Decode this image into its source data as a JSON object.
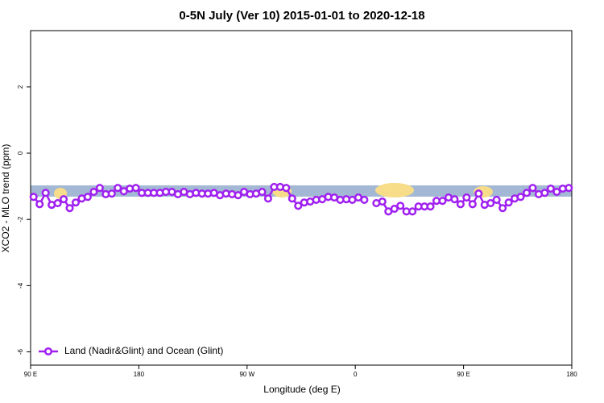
{
  "chart_data": {
    "type": "line",
    "title": "0-5N July (Ver 10)   2015-01-01 to 2020-12-18",
    "x_label": "Longitude (deg E)",
    "y_label": "XCO2 - MLO trend (ppm)",
    "x": [
      92.5,
      97.5,
      102.5,
      107.5,
      112.5,
      117.5,
      122.5,
      127.5,
      132.5,
      137.5,
      142.5,
      147.5,
      152.5,
      157.5,
      162.5,
      167.5,
      172.5,
      177.5,
      182.5,
      187.5,
      192.5,
      197.5,
      202.5,
      207.5,
      212.5,
      217.5,
      222.5,
      227.5,
      232.5,
      237.5,
      242.5,
      247.5,
      252.5,
      257.5,
      262.5,
      267.5,
      272.5,
      277.5,
      282.5,
      287.5,
      292.5,
      297.5,
      302.5,
      307.5,
      312.5,
      317.5,
      322.5,
      327.5,
      332.5,
      337.5,
      342.5,
      347.5,
      352.5,
      357.5,
      362.5,
      367.5,
      372.5,
      377.5,
      382.5,
      387.5,
      392.5,
      397.5,
      402.5,
      407.5,
      412.5,
      417.5,
      422.5,
      427.5,
      432.5,
      437.5,
      442.5,
      447.5,
      452.5,
      457.5,
      462.5,
      467.5,
      472.5,
      477.5,
      482.5,
      487.5,
      492.5,
      497.5,
      502.5,
      507.5,
      512.5,
      517.5,
      522.5,
      527.5,
      532.5,
      537.5
    ],
    "series": [
      {
        "name": "Land (Nadir&Glint) and Ocean (Glint)",
        "color": "#a020f0",
        "values": [
          -1.32,
          -1.54,
          -1.2,
          -1.56,
          -1.51,
          -1.39,
          -1.66,
          -1.49,
          -1.37,
          -1.32,
          -1.17,
          -1.05,
          -1.24,
          -1.22,
          -1.05,
          -1.15,
          -1.07,
          -1.05,
          -1.2,
          -1.2,
          -1.2,
          -1.2,
          -1.17,
          -1.17,
          -1.24,
          -1.17,
          -1.24,
          -1.2,
          -1.22,
          -1.22,
          -1.2,
          -1.27,
          -1.22,
          -1.24,
          -1.27,
          -1.17,
          -1.24,
          -1.22,
          -1.17,
          -1.37,
          -1.02,
          -1.02,
          -1.05,
          -1.37,
          -1.59,
          -1.49,
          -1.46,
          -1.41,
          -1.39,
          -1.32,
          -1.34,
          -1.41,
          -1.39,
          -1.41,
          -1.34,
          -1.41,
          null,
          -1.51,
          -1.46,
          -1.76,
          -1.68,
          -1.59,
          -1.76,
          -1.76,
          -1.61,
          -1.61,
          -1.61,
          -1.44,
          -1.44,
          -1.34,
          -1.39,
          -1.54,
          -1.34,
          -1.54,
          -1.22,
          -1.56,
          -1.51,
          -1.41,
          -1.66,
          -1.49,
          -1.37,
          -1.32,
          -1.2,
          -1.05,
          -1.24,
          -1.2,
          -1.07,
          -1.17,
          -1.07,
          -1.05
        ]
      }
    ],
    "xlim": [
      90,
      540
    ],
    "xticks": [
      {
        "value": 90,
        "label": "90 E"
      },
      180,
      {
        "value": 270,
        "label": "90 W"
      },
      {
        "value": 360,
        "label": "0"
      },
      {
        "value": 450,
        "label": "90 E"
      },
      {
        "value": 540,
        "label": "180"
      }
    ],
    "ylim": [
      -6.4,
      3.7
    ],
    "yticks": [
      -6,
      -4,
      -2,
      0,
      2
    ],
    "legend": "lower left"
  }
}
